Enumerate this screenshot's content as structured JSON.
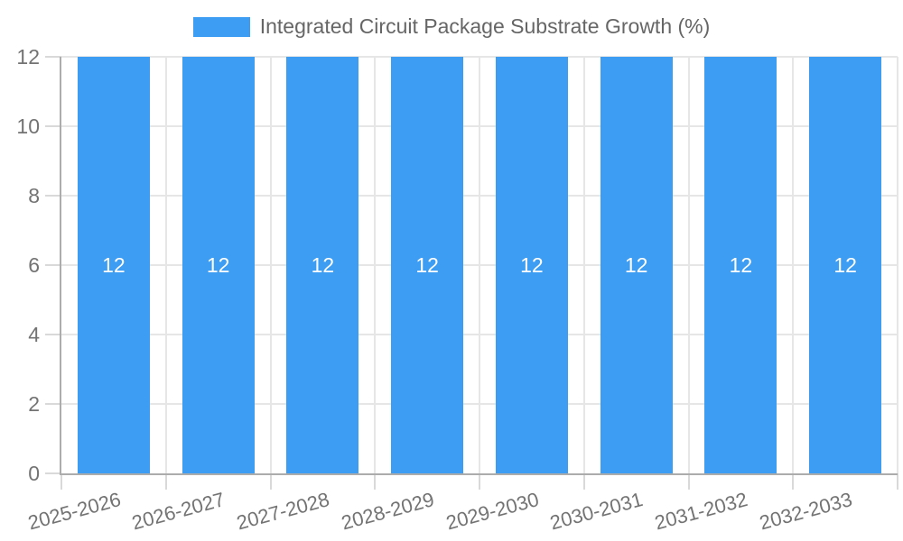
{
  "legend": {
    "label": "Integrated Circuit Package Substrate Growth (%)"
  },
  "chart_data": {
    "type": "bar",
    "title": "",
    "categories": [
      "2025-2026",
      "2026-2027",
      "2027-2028",
      "2028-2029",
      "2029-2030",
      "2030-2031",
      "2031-2032",
      "2032-2033"
    ],
    "series": [
      {
        "name": "Integrated Circuit Package Substrate Growth (%)",
        "values": [
          12,
          12,
          12,
          12,
          12,
          12,
          12,
          12
        ]
      }
    ],
    "data_labels": [
      "12",
      "12",
      "12",
      "12",
      "12",
      "12",
      "12",
      "12"
    ],
    "xlabel": "",
    "ylabel": "",
    "ylim": [
      0,
      12
    ],
    "yticks": [
      0,
      2,
      4,
      6,
      8,
      10,
      12
    ],
    "ytick_labels": [
      "0",
      "2",
      "4",
      "6",
      "8",
      "10",
      "12"
    ],
    "grid": true,
    "legend_position": "top",
    "colors": {
      "bar": "#3D9DF3",
      "data_label": "#FFFFFF",
      "gridline": "#E6E6E6",
      "axis_line": "#ACACAC",
      "tick_mark": "#D9D9D9",
      "tick_label": "#737373",
      "legend_text": "#666666",
      "background": "#FFFFFF"
    }
  }
}
